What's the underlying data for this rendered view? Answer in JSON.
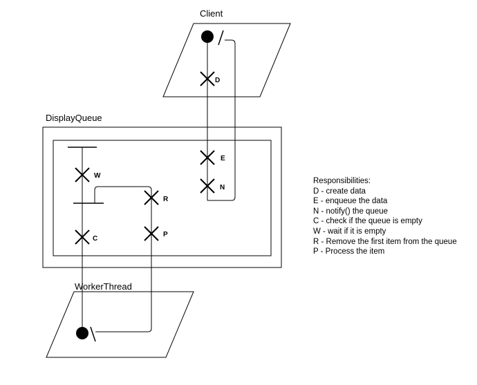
{
  "diagram": {
    "client_label": "Client",
    "displayqueue_label": "DisplayQueue",
    "workerthread_label": "WorkerThread",
    "markers": {
      "D": "D",
      "E": "E",
      "N": "N",
      "W": "W",
      "C": "C",
      "R": "R",
      "P": "P"
    }
  },
  "legend": {
    "title": "Responsibilities:",
    "items": [
      "D - create data",
      "E - enqueue the data",
      "N - notify() the queue",
      "C - check if the queue is empty",
      "W - wait if it is empty",
      "R - Remove the first item from the queue",
      "P - Process the item"
    ]
  }
}
